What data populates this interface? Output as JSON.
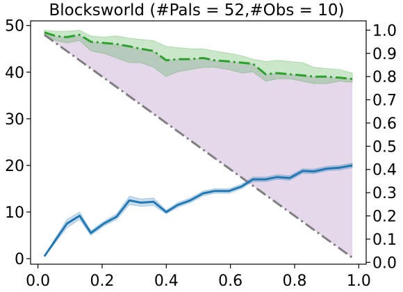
{
  "chart_data": {
    "type": "line",
    "title": "Blocksworld (#Pals = 52,#Obs = 10)",
    "xlabel": "",
    "ylabel_left": "",
    "ylabel_right": "",
    "xlim": [
      0.0,
      1.0
    ],
    "ylim_left": [
      0,
      50
    ],
    "ylim_right": [
      0.0,
      1.0
    ],
    "x_ticks": [
      "0.0",
      "0.2",
      "0.4",
      "0.6",
      "0.8",
      "1.0"
    ],
    "y_left_ticks": [
      "0",
      "10",
      "20",
      "30",
      "40",
      "50"
    ],
    "y_right_ticks": [
      "0.0",
      "0.1",
      "0.2",
      "0.3",
      "0.4",
      "0.5",
      "0.6",
      "0.7",
      "0.8",
      "0.9",
      "1.0"
    ],
    "grid": false,
    "x": [
      0.02,
      0.055,
      0.09,
      0.13,
      0.165,
      0.205,
      0.245,
      0.285,
      0.32,
      0.36,
      0.4,
      0.435,
      0.475,
      0.515,
      0.55,
      0.595,
      0.635,
      0.67,
      0.71,
      0.745,
      0.785,
      0.825,
      0.86,
      0.9,
      0.94,
      0.98
    ],
    "series": [
      {
        "axis": "left",
        "color": "#1f77b4",
        "style": "solid",
        "values": [
          0.5,
          4.0,
          7.5,
          9.2,
          5.5,
          7.5,
          9.0,
          12.5,
          12.0,
          12.2,
          10.0,
          11.5,
          12.5,
          14.0,
          14.5,
          14.5,
          15.5,
          17.0,
          17.0,
          17.5,
          17.3,
          18.8,
          18.7,
          19.3,
          19.5,
          20.0
        ],
        "lower": [
          0.4,
          3.5,
          6.6,
          8.4,
          5.0,
          7.0,
          8.4,
          11.6,
          11.2,
          11.4,
          9.6,
          11.0,
          12.0,
          13.5,
          14.0,
          14.0,
          15.0,
          16.5,
          16.5,
          17.0,
          16.8,
          18.3,
          18.2,
          18.8,
          19.0,
          19.5
        ],
        "upper": [
          0.6,
          4.5,
          8.4,
          10.0,
          6.0,
          8.0,
          9.6,
          13.4,
          12.8,
          13.0,
          10.4,
          12.0,
          13.0,
          14.5,
          15.0,
          15.0,
          16.0,
          17.5,
          17.5,
          18.0,
          17.8,
          19.3,
          19.2,
          19.8,
          20.0,
          20.5
        ]
      },
      {
        "axis": "right",
        "color": "#2ca02c",
        "style": "dash-dot",
        "values": [
          0.99,
          0.975,
          0.97,
          0.98,
          0.95,
          0.945,
          0.94,
          0.93,
          0.92,
          0.91,
          0.87,
          0.875,
          0.875,
          0.88,
          0.87,
          0.865,
          0.86,
          0.855,
          0.81,
          0.815,
          0.81,
          0.805,
          0.8,
          0.8,
          0.795,
          0.79
        ],
        "lower": [
          0.98,
          0.955,
          0.945,
          0.955,
          0.91,
          0.9,
          0.88,
          0.86,
          0.86,
          0.84,
          0.8,
          0.82,
          0.83,
          0.84,
          0.84,
          0.83,
          0.815,
          0.82,
          0.78,
          0.79,
          0.79,
          0.78,
          0.77,
          0.77,
          0.78,
          0.775
        ],
        "upper": [
          1.0,
          0.995,
          0.995,
          1.0,
          0.975,
          0.97,
          0.975,
          0.965,
          0.96,
          0.955,
          0.93,
          0.925,
          0.92,
          0.92,
          0.91,
          0.9,
          0.89,
          0.875,
          0.865,
          0.87,
          0.865,
          0.86,
          0.84,
          0.835,
          0.83,
          0.815
        ]
      },
      {
        "axis": "right",
        "color": "#7f7f7f",
        "style": "dash-dot",
        "x": [
          0.02,
          0.98
        ],
        "values": [
          0.98,
          0.02
        ]
      }
    ],
    "shaded_region": {
      "color": "#e2d1e7",
      "between": "gray diagonal and green series"
    }
  }
}
